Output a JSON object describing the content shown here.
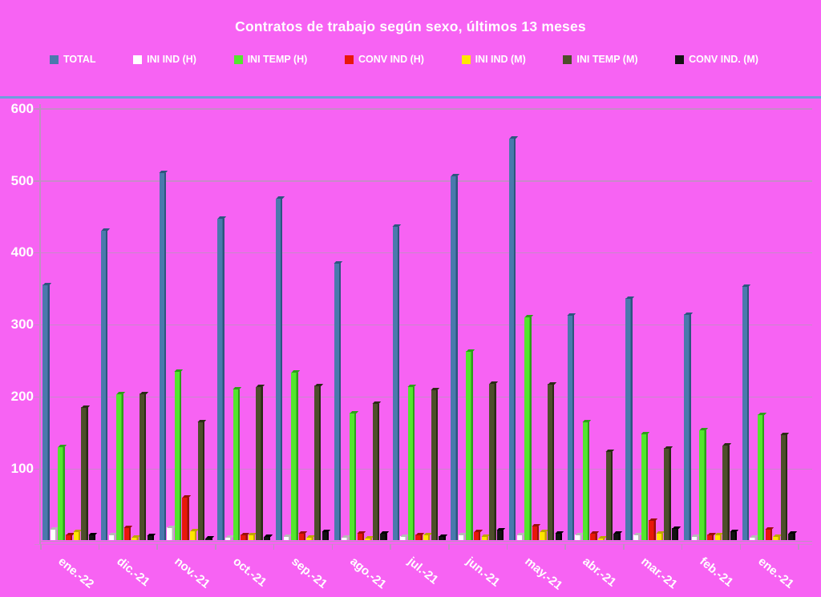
{
  "title": "Contratos de trabajo según sexo, últimos 13 meses",
  "colors": {
    "background": "#F763F3",
    "top_rule": "#6E9EDE",
    "gridline": "#C08FC2",
    "text": "#FFFFFF"
  },
  "chart_data": {
    "type": "bar",
    "title": "Contratos de trabajo según sexo, últimos 13 meses",
    "xlabel": "",
    "ylabel": "",
    "ylim": [
      0,
      600
    ],
    "y_ticks": [
      100,
      200,
      300,
      400,
      500,
      600
    ],
    "grid": true,
    "legend_position": "top",
    "categories": [
      "ene.-22",
      "dic.-21",
      "nov.-21",
      "oct.-21",
      "sep.-21",
      "ago.-21",
      "jul.-21",
      "jun.-21",
      "may.-21",
      "abr.-21",
      "mar.-21",
      "feb.-21",
      "ene.-21"
    ],
    "series": [
      {
        "name": "TOTAL",
        "color": "#4A79AD",
        "side": "#2C567E",
        "values": [
          355,
          430,
          510,
          447,
          475,
          385,
          436,
          506,
          558,
          313,
          336,
          314,
          353
        ]
      },
      {
        "name": "INI IND (H)",
        "color": "#FFFFFF",
        "side": "#B9B9B9",
        "values": [
          15,
          8,
          18,
          4,
          5,
          4,
          6,
          8,
          8,
          8,
          8,
          5,
          4
        ]
      },
      {
        "name": "INI TEMP (H)",
        "color": "#53E62E",
        "side": "#2E9F19",
        "values": [
          130,
          203,
          235,
          210,
          233,
          177,
          213,
          263,
          310,
          165,
          148,
          153,
          175
        ]
      },
      {
        "name": "CONV IND (H)",
        "color": "#E8170A",
        "side": "#9C0F06",
        "values": [
          8,
          18,
          60,
          8,
          10,
          10,
          8,
          12,
          20,
          10,
          28,
          8,
          16
        ]
      },
      {
        "name": "INI IND (M)",
        "color": "#FFE600",
        "side": "#BFA500",
        "values": [
          12,
          4,
          13,
          8,
          4,
          3,
          8,
          5,
          12,
          3,
          10,
          8,
          6
        ]
      },
      {
        "name": "INI TEMP  (M)",
        "color": "#4E4E2B",
        "side": "#2B2B15",
        "values": [
          185,
          204,
          165,
          213,
          215,
          190,
          209,
          218,
          217,
          123,
          128,
          132,
          147
        ]
      },
      {
        "name": "CONV IND.  (M)",
        "color": "#121212",
        "side": "#000000",
        "values": [
          8,
          7,
          3,
          5,
          12,
          10,
          6,
          14,
          10,
          10,
          17,
          12,
          10
        ]
      }
    ]
  }
}
